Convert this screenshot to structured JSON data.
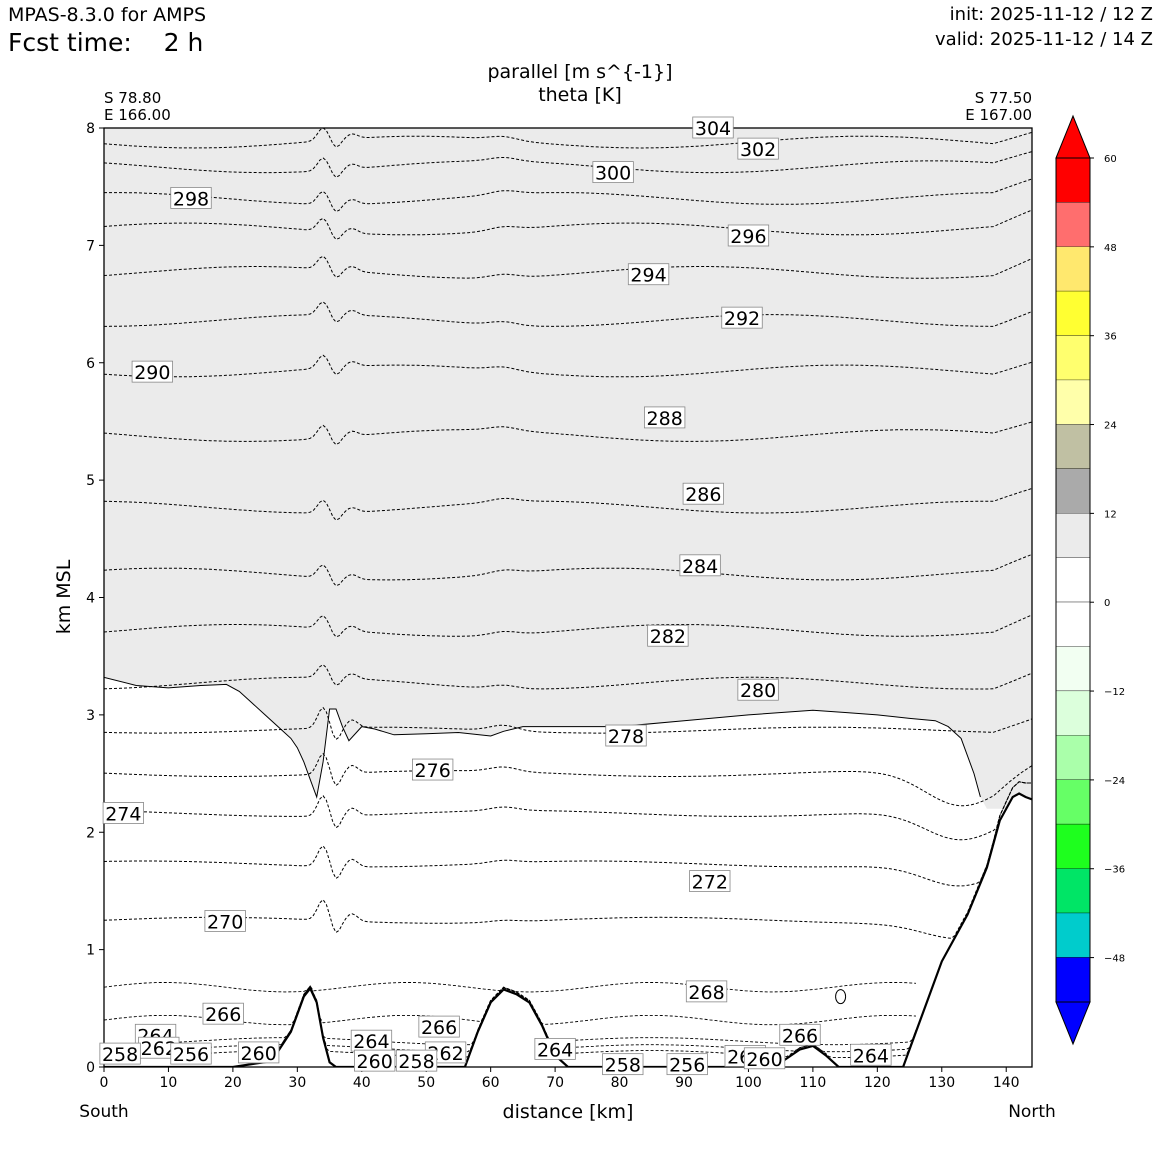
{
  "header": {
    "model": "MPAS-8.3.0 for AMPS",
    "fcst_label": "Fcst time:",
    "fcst_value": "2 h",
    "init": "init: 2025-11-12 / 12 Z",
    "valid": "valid: 2025-11-12 / 14 Z"
  },
  "chart_data": {
    "type": "cross-section",
    "title": "parallel [m s^{-1}]",
    "subtitle": "theta [K]",
    "xlabel": "distance [km]",
    "ylabel": "km MSL",
    "xlim": [
      0,
      144
    ],
    "ylim": [
      0,
      8
    ],
    "xticks": [
      0,
      10,
      20,
      30,
      40,
      50,
      60,
      70,
      80,
      90,
      100,
      110,
      120,
      130,
      140
    ],
    "yticks": [
      0,
      1,
      2,
      3,
      4,
      5,
      6,
      7,
      8
    ],
    "left_end": {
      "lat": "S 78.80",
      "lon": "E 166.00",
      "dir": "South"
    },
    "right_end": {
      "lat": "S 77.50",
      "lon": "E 167.00",
      "dir": "North"
    },
    "shaded_region": {
      "level": "6 to 12 m s^-1",
      "color": "#ebebeb"
    },
    "colorbar": {
      "ticks": [
        "60",
        "48",
        "36",
        "24",
        "12",
        "0",
        "−12",
        "−24",
        "−36",
        "−48"
      ],
      "bins": [
        {
          "range": [
            54,
            60
          ],
          "color": "#ff0000"
        },
        {
          "range": [
            48,
            54
          ],
          "color": "#ff6e6e"
        },
        {
          "range": [
            42,
            48
          ],
          "color": "#ffe86e"
        },
        {
          "range": [
            36,
            42
          ],
          "color": "#ffff32"
        },
        {
          "range": [
            30,
            36
          ],
          "color": "#ffff6e"
        },
        {
          "range": [
            24,
            30
          ],
          "color": "#ffffaa"
        },
        {
          "range": [
            18,
            24
          ],
          "color": "#c0c0a3"
        },
        {
          "range": [
            12,
            18
          ],
          "color": "#aaaaaa"
        },
        {
          "range": [
            6,
            12
          ],
          "color": "#ebebeb"
        },
        {
          "range": [
            0,
            6
          ],
          "color": "#ffffff"
        },
        {
          "range": [
            -6,
            0
          ],
          "color": "#ffffff"
        },
        {
          "range": [
            -12,
            -6
          ],
          "color": "#f2fff2"
        },
        {
          "range": [
            -18,
            -12
          ],
          "color": "#dcffdc"
        },
        {
          "range": [
            -24,
            -18
          ],
          "color": "#aaffaa"
        },
        {
          "range": [
            -30,
            -24
          ],
          "color": "#66ff66"
        },
        {
          "range": [
            -36,
            -30
          ],
          "color": "#1eff1e"
        },
        {
          "range": [
            -42,
            -36
          ],
          "color": "#00e566"
        },
        {
          "range": [
            -48,
            -42
          ],
          "color": "#00cccc"
        },
        {
          "range": [
            -54,
            -48
          ],
          "color": "#0000ff"
        }
      ],
      "extend_max_color": "#ff0000",
      "extend_min_color": "#0000ff"
    },
    "terrain": [
      [
        0,
        0
      ],
      [
        20,
        0
      ],
      [
        26,
        0.05
      ],
      [
        29,
        0.3
      ],
      [
        31,
        0.6
      ],
      [
        32,
        0.67
      ],
      [
        33,
        0.55
      ],
      [
        34,
        0.25
      ],
      [
        35,
        0.04
      ],
      [
        36,
        0
      ],
      [
        56,
        0
      ],
      [
        58,
        0.3
      ],
      [
        60,
        0.55
      ],
      [
        62,
        0.66
      ],
      [
        64,
        0.62
      ],
      [
        66,
        0.55
      ],
      [
        68,
        0.35
      ],
      [
        70,
        0.1
      ],
      [
        72,
        0
      ],
      [
        104,
        0
      ],
      [
        108,
        0.15
      ],
      [
        110,
        0.18
      ],
      [
        112,
        0.1
      ],
      [
        114,
        0
      ],
      [
        124,
        0
      ],
      [
        126,
        0.3
      ],
      [
        128,
        0.6
      ],
      [
        130,
        0.9
      ],
      [
        134,
        1.3
      ],
      [
        137,
        1.7
      ],
      [
        139,
        2.1
      ],
      [
        141,
        2.3
      ],
      [
        142,
        2.33
      ],
      [
        143,
        2.3
      ],
      [
        144,
        2.28
      ]
    ],
    "shade_boundary": [
      [
        0,
        3.32
      ],
      [
        5,
        3.25
      ],
      [
        10,
        3.23
      ],
      [
        15,
        3.25
      ],
      [
        19,
        3.26
      ],
      [
        21,
        3.2
      ],
      [
        23,
        3.1
      ],
      [
        25,
        3.0
      ],
      [
        27,
        2.9
      ],
      [
        29,
        2.8
      ],
      [
        30,
        2.72
      ],
      [
        31,
        2.6
      ],
      [
        32,
        2.45
      ],
      [
        33,
        2.3
      ],
      [
        34,
        2.6
      ],
      [
        35,
        3.05
      ],
      [
        36,
        3.05
      ],
      [
        37,
        2.9
      ],
      [
        38,
        2.78
      ],
      [
        40,
        2.9
      ],
      [
        42,
        2.88
      ],
      [
        45,
        2.83
      ],
      [
        50,
        2.84
      ],
      [
        55,
        2.85
      ],
      [
        60,
        2.82
      ],
      [
        62,
        2.86
      ],
      [
        65,
        2.9
      ],
      [
        70,
        2.9
      ],
      [
        80,
        2.9
      ],
      [
        90,
        2.95
      ],
      [
        100,
        3.0
      ],
      [
        110,
        3.04
      ],
      [
        115,
        3.02
      ],
      [
        120,
        3.0
      ],
      [
        125,
        2.97
      ],
      [
        129,
        2.95
      ],
      [
        131,
        2.9
      ],
      [
        133,
        2.8
      ],
      [
        135,
        2.5
      ],
      [
        136,
        2.3
      ]
    ],
    "theta_contours": [
      {
        "value": 270,
        "base": 1.25
      },
      {
        "value": 272,
        "base": 1.73
      },
      {
        "value": 274,
        "base": 2.16
      },
      {
        "value": 276,
        "base": 2.5
      },
      {
        "value": 278,
        "base": 2.87
      },
      {
        "value": 280,
        "base": 3.27
      },
      {
        "value": 282,
        "base": 3.72
      },
      {
        "value": 284,
        "base": 4.2
      },
      {
        "value": 286,
        "base": 4.77
      },
      {
        "value": 288,
        "base": 5.38
      },
      {
        "value": 290,
        "base": 5.93
      },
      {
        "value": 292,
        "base": 6.36
      },
      {
        "value": 294,
        "base": 6.77
      },
      {
        "value": 296,
        "base": 7.14
      },
      {
        "value": 298,
        "base": 7.4
      },
      {
        "value": 300,
        "base": 7.67
      },
      {
        "value": 302,
        "base": 7.88
      },
      {
        "value": 304,
        "base": 8.05
      }
    ],
    "low_contours": [
      {
        "value": 268,
        "base": 0.68
      },
      {
        "value": 266,
        "base": 0.4
      },
      {
        "value": 264,
        "base": 0.22
      },
      {
        "value": 262,
        "base": 0.16
      },
      {
        "value": 260,
        "base": 0.11
      }
    ],
    "contour_labels": [
      {
        "text": "304",
        "x": 94.5,
        "y": 8.0
      },
      {
        "text": "302",
        "x": 101.5,
        "y": 7.82
      },
      {
        "text": "300",
        "x": 79,
        "y": 7.62
      },
      {
        "text": "298",
        "x": 13.5,
        "y": 7.4
      },
      {
        "text": "296",
        "x": 100,
        "y": 7.08
      },
      {
        "text": "294",
        "x": 84.5,
        "y": 6.75
      },
      {
        "text": "292",
        "x": 99,
        "y": 6.38
      },
      {
        "text": "290",
        "x": 7.5,
        "y": 5.92
      },
      {
        "text": "288",
        "x": 87,
        "y": 5.53
      },
      {
        "text": "286",
        "x": 93,
        "y": 4.88
      },
      {
        "text": "284",
        "x": 92.5,
        "y": 4.27
      },
      {
        "text": "282",
        "x": 87.5,
        "y": 3.67
      },
      {
        "text": "280",
        "x": 101.5,
        "y": 3.21
      },
      {
        "text": "278",
        "x": 81,
        "y": 2.82
      },
      {
        "text": "276",
        "x": 51,
        "y": 2.53
      },
      {
        "text": "274",
        "x": 3,
        "y": 2.16
      },
      {
        "text": "272",
        "x": 94,
        "y": 1.58
      },
      {
        "text": "270",
        "x": 18.8,
        "y": 1.24
      },
      {
        "text": "268",
        "x": 93.5,
        "y": 0.64
      },
      {
        "text": "266",
        "x": 18.5,
        "y": 0.45
      },
      {
        "text": "264",
        "x": 8,
        "y": 0.27
      },
      {
        "text": "266",
        "x": 52,
        "y": 0.34
      },
      {
        "text": "264",
        "x": 41.5,
        "y": 0.22
      },
      {
        "text": "262",
        "x": 8.5,
        "y": 0.16
      },
      {
        "text": "258",
        "x": 2.5,
        "y": 0.11
      },
      {
        "text": "256",
        "x": 13.5,
        "y": 0.11
      },
      {
        "text": "260",
        "x": 24,
        "y": 0.12
      },
      {
        "text": "262",
        "x": 53,
        "y": 0.12
      },
      {
        "text": "260",
        "x": 42,
        "y": 0.05
      },
      {
        "text": "258",
        "x": 48.5,
        "y": 0.05
      },
      {
        "text": "264",
        "x": 70,
        "y": 0.15
      },
      {
        "text": "258",
        "x": 80.5,
        "y": 0.02
      },
      {
        "text": "256",
        "x": 90.5,
        "y": 0.02
      },
      {
        "text": "262",
        "x": 99.5,
        "y": 0.09
      },
      {
        "text": "260",
        "x": 102.5,
        "y": 0.07
      },
      {
        "text": "266",
        "x": 108,
        "y": 0.27
      },
      {
        "text": "264",
        "x": 119,
        "y": 0.1
      }
    ]
  }
}
